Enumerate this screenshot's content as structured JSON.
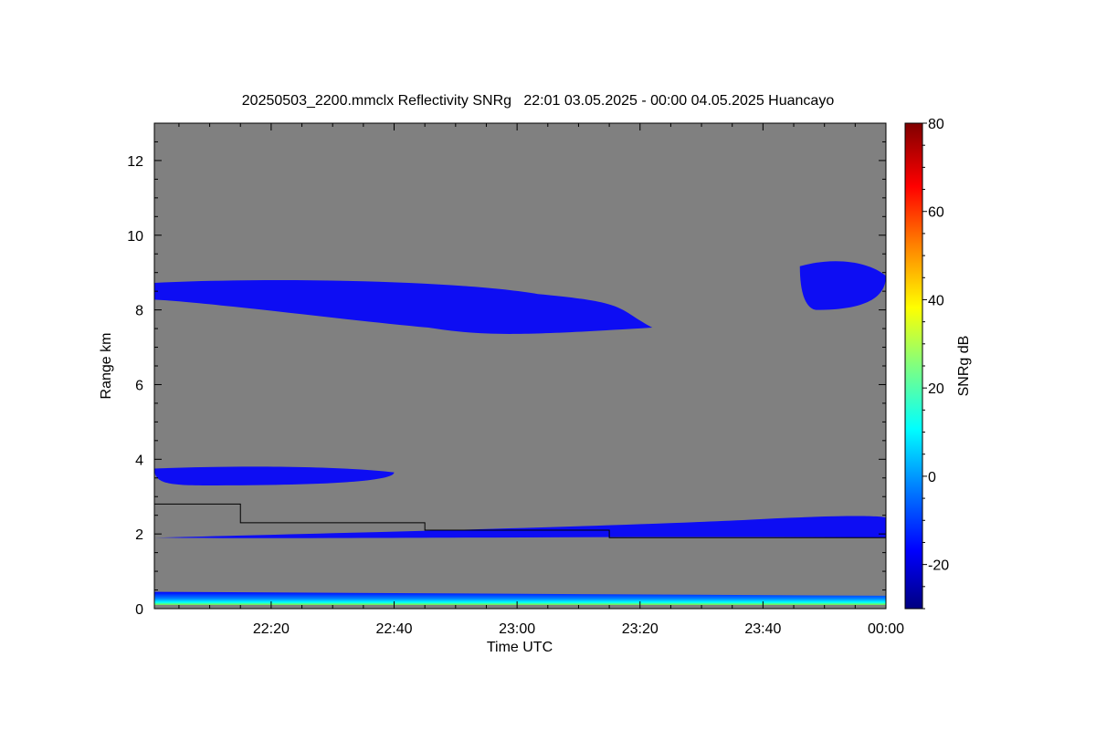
{
  "chart_data": {
    "type": "heatmap",
    "title": "20250503_2200.mmclx Reflectivity SNRg   22:01 03.05.2025 - 00:00 04.05.2025 Huancayo",
    "xlabel": "Time UTC",
    "ylabel": "Range km",
    "x_range_minutes_after_22_00": [
      1,
      120
    ],
    "x_ticks": [
      {
        "minute": 20,
        "label": "22:20"
      },
      {
        "minute": 40,
        "label": "22:40"
      },
      {
        "minute": 60,
        "label": "23:00"
      },
      {
        "minute": 80,
        "label": "23:20"
      },
      {
        "minute": 100,
        "label": "23:40"
      },
      {
        "minute": 120,
        "label": "00:00"
      }
    ],
    "ylim": [
      0,
      13
    ],
    "y_ticks": [
      {
        "value": 0,
        "label": "0"
      },
      {
        "value": 2,
        "label": "2"
      },
      {
        "value": 4,
        "label": "4"
      },
      {
        "value": 6,
        "label": "6"
      },
      {
        "value": 8,
        "label": "8"
      },
      {
        "value": 10,
        "label": "10"
      },
      {
        "value": 12,
        "label": "12"
      }
    ],
    "background_color": "#808080",
    "colorbar": {
      "label": "SNRg dB",
      "range": [
        -30,
        80
      ],
      "ticks": [
        {
          "value": -20,
          "label": "-20"
        },
        {
          "value": 0,
          "label": "0"
        },
        {
          "value": 20,
          "label": "20"
        },
        {
          "value": 40,
          "label": "40"
        },
        {
          "value": 60,
          "label": "60"
        },
        {
          "value": 80,
          "label": "80"
        }
      ],
      "colors": [
        "#000080",
        "#0000ff",
        "#0080ff",
        "#00ffff",
        "#80ff80",
        "#ffff00",
        "#ff8000",
        "#ff0000",
        "#800000"
      ]
    },
    "echo_layers": [
      {
        "t_start": 1,
        "t_end": 120,
        "bottom_km": 0.1,
        "top_km": 0.45,
        "snr_db": -10
      },
      {
        "t_start": 1,
        "t_end": 40,
        "bottom_km": 3.3,
        "top_km": 3.8,
        "snr_db": -15
      },
      {
        "t_start": 1,
        "t_end": 82,
        "bottom_km": 7.3,
        "top_km": 8.8,
        "snr_db": -18
      },
      {
        "t_start": 106,
        "t_end": 120,
        "bottom_km": 8.0,
        "top_km": 9.3,
        "snr_db": -18
      },
      {
        "t_start": 1,
        "t_end": 120,
        "bottom_km": 1.9,
        "top_km": 2.5,
        "snr_db": -20
      }
    ],
    "threshold_line_km": [
      {
        "t_start": 1,
        "t_end": 15,
        "value": 2.8
      },
      {
        "t_start": 15,
        "t_end": 45,
        "value": 2.3
      },
      {
        "t_start": 45,
        "t_end": 75,
        "value": 2.1
      },
      {
        "t_start": 75,
        "t_end": 120,
        "value": 1.9
      }
    ]
  }
}
